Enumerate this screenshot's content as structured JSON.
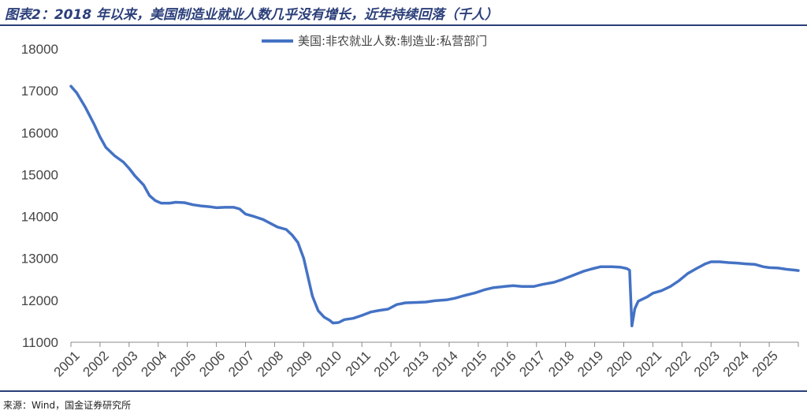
{
  "header": {
    "title": "图表2：2018 年以来，美国制造业就业人数几乎没有增长，近年持续回落（千人）"
  },
  "footer": {
    "source": "来源：Wind，国金证券研究所"
  },
  "colors": {
    "accent": "#2b3f7a",
    "series": "#4472c4"
  },
  "chart_data": {
    "type": "line",
    "title": "",
    "xlabel": "",
    "ylabel": "",
    "ylim": [
      11000,
      18000
    ],
    "yticks": [
      11000,
      12000,
      13000,
      14000,
      15000,
      16000,
      17000,
      18000
    ],
    "xticks": [
      "2001",
      "2002",
      "2003",
      "2004",
      "2005",
      "2006",
      "2007",
      "2008",
      "2009",
      "2010",
      "2011",
      "2012",
      "2013",
      "2014",
      "2015",
      "2016",
      "2017",
      "2018",
      "2019",
      "2020",
      "2021",
      "2022",
      "2023",
      "2024",
      "2025"
    ],
    "legend_position": "top-center",
    "grid": false,
    "series": [
      {
        "name": "美国:非农就业人数:制造业:私营部门",
        "points": [
          [
            2001.0,
            17110
          ],
          [
            2001.2,
            16950
          ],
          [
            2001.5,
            16600
          ],
          [
            2001.8,
            16200
          ],
          [
            2002.0,
            15900
          ],
          [
            2002.2,
            15650
          ],
          [
            2002.5,
            15450
          ],
          [
            2002.8,
            15300
          ],
          [
            2003.0,
            15150
          ],
          [
            2003.2,
            14970
          ],
          [
            2003.5,
            14750
          ],
          [
            2003.7,
            14500
          ],
          [
            2003.9,
            14380
          ],
          [
            2004.1,
            14320
          ],
          [
            2004.4,
            14320
          ],
          [
            2004.6,
            14340
          ],
          [
            2004.9,
            14330
          ],
          [
            2005.2,
            14280
          ],
          [
            2005.5,
            14250
          ],
          [
            2005.8,
            14230
          ],
          [
            2006.0,
            14210
          ],
          [
            2006.3,
            14220
          ],
          [
            2006.6,
            14220
          ],
          [
            2006.8,
            14180
          ],
          [
            2007.0,
            14060
          ],
          [
            2007.3,
            14000
          ],
          [
            2007.6,
            13930
          ],
          [
            2007.9,
            13820
          ],
          [
            2008.1,
            13750
          ],
          [
            2008.4,
            13690
          ],
          [
            2008.6,
            13560
          ],
          [
            2008.8,
            13380
          ],
          [
            2009.0,
            13000
          ],
          [
            2009.15,
            12550
          ],
          [
            2009.3,
            12100
          ],
          [
            2009.5,
            11750
          ],
          [
            2009.7,
            11600
          ],
          [
            2009.9,
            11520
          ],
          [
            2010.0,
            11460
          ],
          [
            2010.2,
            11470
          ],
          [
            2010.4,
            11540
          ],
          [
            2010.7,
            11570
          ],
          [
            2011.0,
            11640
          ],
          [
            2011.3,
            11720
          ],
          [
            2011.6,
            11760
          ],
          [
            2011.9,
            11790
          ],
          [
            2012.2,
            11900
          ],
          [
            2012.5,
            11940
          ],
          [
            2012.9,
            11950
          ],
          [
            2013.2,
            11960
          ],
          [
            2013.5,
            11990
          ],
          [
            2013.9,
            12010
          ],
          [
            2014.2,
            12050
          ],
          [
            2014.5,
            12110
          ],
          [
            2014.9,
            12180
          ],
          [
            2015.2,
            12250
          ],
          [
            2015.5,
            12300
          ],
          [
            2015.9,
            12330
          ],
          [
            2016.2,
            12350
          ],
          [
            2016.5,
            12330
          ],
          [
            2016.9,
            12330
          ],
          [
            2017.2,
            12380
          ],
          [
            2017.6,
            12430
          ],
          [
            2017.9,
            12500
          ],
          [
            2018.2,
            12580
          ],
          [
            2018.6,
            12690
          ],
          [
            2018.9,
            12750
          ],
          [
            2019.2,
            12800
          ],
          [
            2019.6,
            12800
          ],
          [
            2019.9,
            12790
          ],
          [
            2020.1,
            12760
          ],
          [
            2020.2,
            12720
          ],
          [
            2020.28,
            11390
          ],
          [
            2020.38,
            11800
          ],
          [
            2020.5,
            11980
          ],
          [
            2020.8,
            12080
          ],
          [
            2021.0,
            12170
          ],
          [
            2021.3,
            12230
          ],
          [
            2021.6,
            12330
          ],
          [
            2021.9,
            12470
          ],
          [
            2022.2,
            12640
          ],
          [
            2022.5,
            12760
          ],
          [
            2022.8,
            12870
          ],
          [
            2023.0,
            12920
          ],
          [
            2023.3,
            12920
          ],
          [
            2023.6,
            12900
          ],
          [
            2023.9,
            12890
          ],
          [
            2024.2,
            12870
          ],
          [
            2024.5,
            12860
          ],
          [
            2024.8,
            12800
          ],
          [
            2025.0,
            12780
          ],
          [
            2025.3,
            12770
          ],
          [
            2025.6,
            12740
          ],
          [
            2025.9,
            12720
          ],
          [
            2026.0,
            12710
          ]
        ]
      }
    ]
  }
}
